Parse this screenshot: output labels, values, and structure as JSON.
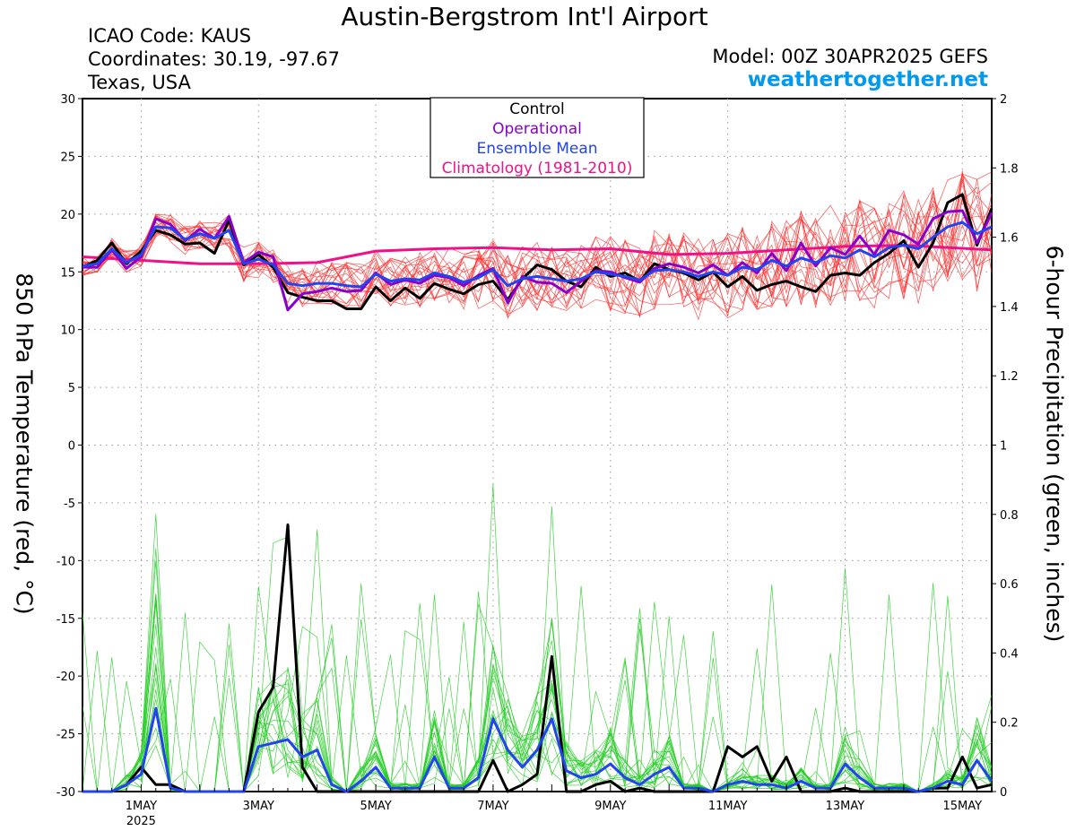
{
  "header": {
    "title": "Austin-Bergstrom Int'l Airport",
    "icao": "ICAO Code: KAUS",
    "coords": "Coordinates: 30.19, -97.67",
    "region": "Texas, USA",
    "model": "Model: 00Z 30APR2025 GEFS",
    "site": "weathertogether.net"
  },
  "chart_data": {
    "type": "line",
    "title": "Austin-Bergstrom Int'l Airport",
    "ylabel": "850 hPa Temperature (red, °C)",
    "y2label": "6-hour Precipitation (green, inches)",
    "xlabel": "",
    "ylim": [
      -30,
      30
    ],
    "y2lim": [
      0,
      2
    ],
    "xlim": [
      0,
      62
    ],
    "x_unit": "6-hour steps from 00Z 30APR2025",
    "yticks": [
      "30",
      "25",
      "20",
      "15",
      "10",
      "5",
      "0",
      "-5",
      "-10",
      "-15",
      "-20",
      "-25",
      "-30"
    ],
    "y2ticks": [
      "2",
      "1.8",
      "1.6",
      "1.4",
      "1.2",
      "1",
      "0.8",
      "0.6",
      "0.4",
      "0.2",
      "0"
    ],
    "xticks": [
      {
        "x": 4,
        "label": "1MAY",
        "sub": "2025"
      },
      {
        "x": 12,
        "label": "3MAY",
        "sub": ""
      },
      {
        "x": 20,
        "label": "5MAY",
        "sub": ""
      },
      {
        "x": 28,
        "label": "7MAY",
        "sub": ""
      },
      {
        "x": 36,
        "label": "9MAY",
        "sub": ""
      },
      {
        "x": 44,
        "label": "11MAY",
        "sub": ""
      },
      {
        "x": 52,
        "label": "13MAY",
        "sub": ""
      },
      {
        "x": 60,
        "label": "15MAY",
        "sub": ""
      }
    ],
    "grid": true,
    "legend": {
      "position": "top-center",
      "entries": [
        {
          "label": "Control",
          "color": "#000000"
        },
        {
          "label": "Operational",
          "color": "#8800cc"
        },
        {
          "label": "Ensemble Mean",
          "color": "#2244ee"
        },
        {
          "label": "Climatology (1981-2010)",
          "color": "#ee1188"
        }
      ]
    },
    "colors": {
      "member_temp": "#ff3333",
      "member_precip": "#22cc22",
      "control": "#000000",
      "operational": "#8800cc",
      "mean": "#2244ee",
      "climatology": "#ee1188"
    },
    "series": [
      {
        "name": "Climatology (1981-2010)",
        "axis": "temp",
        "x": [
          0,
          4,
          8,
          12,
          16,
          20,
          24,
          28,
          32,
          36,
          40,
          44,
          48,
          52,
          56,
          62
        ],
        "values": [
          16.3,
          16.0,
          15.7,
          15.7,
          15.8,
          16.8,
          17.0,
          17.1,
          16.9,
          17.0,
          16.5,
          16.6,
          16.9,
          17.2,
          17.3,
          16.9
        ]
      },
      {
        "name": "Control",
        "axis": "temp",
        "x": [
          0,
          1,
          2,
          3,
          4,
          5,
          6,
          7,
          8,
          9,
          10,
          11,
          12,
          13,
          14,
          15,
          16,
          17,
          18,
          19,
          20,
          21,
          22,
          23,
          24,
          25,
          26,
          27,
          28,
          29,
          30,
          31,
          32,
          33,
          34,
          35,
          36,
          37,
          38,
          39,
          40,
          41,
          42,
          43,
          44,
          45,
          46,
          47,
          48,
          49,
          50,
          51,
          52,
          53,
          54,
          55,
          56,
          57,
          58,
          59,
          60,
          61,
          62
        ],
        "values": [
          15.4,
          16.0,
          17.5,
          15.7,
          16.8,
          18.6,
          18.2,
          17.4,
          17.5,
          16.6,
          19.5,
          15.6,
          16.5,
          15.4,
          13.2,
          12.8,
          12.5,
          12.5,
          11.8,
          11.8,
          13.7,
          12.5,
          13.6,
          12.7,
          14.0,
          13.5,
          13.1,
          13.9,
          14.2,
          12.6,
          14.4,
          15.6,
          15.2,
          14.2,
          13.7,
          15.4,
          14.6,
          14.9,
          14.2,
          15.7,
          15.2,
          14.9,
          14.3,
          15.0,
          13.7,
          14.6,
          13.4,
          13.9,
          14.2,
          13.7,
          13.3,
          14.7,
          14.9,
          14.7,
          15.8,
          16.6,
          17.7,
          15.4,
          17.5,
          21.0,
          21.7,
          17.3,
          20.5
        ]
      },
      {
        "name": "Operational",
        "axis": "temp",
        "x": [
          0,
          1,
          2,
          3,
          4,
          5,
          6,
          7,
          8,
          9,
          10,
          11,
          12,
          13,
          14,
          15,
          16,
          17,
          18,
          19,
          20,
          21,
          22,
          23,
          24,
          25,
          26,
          27,
          28,
          29,
          30,
          31,
          32,
          33,
          34,
          35,
          36,
          37,
          38,
          39,
          40,
          41,
          42,
          43,
          44,
          45,
          46,
          47,
          48,
          49,
          50,
          51,
          52,
          53,
          54,
          55,
          56,
          57,
          58,
          59,
          60,
          61,
          62
        ],
        "values": [
          15.4,
          15.4,
          16.9,
          15.3,
          16.3,
          19.6,
          19.1,
          17.7,
          18.7,
          17.9,
          19.8,
          15.8,
          16.7,
          16.3,
          11.7,
          13.1,
          13.3,
          13.6,
          13.3,
          13.4,
          14.9,
          13.9,
          14.3,
          14.0,
          14.7,
          14.5,
          13.8,
          14.7,
          15.3,
          12.3,
          14.6,
          14.1,
          14.0,
          13.2,
          14.2,
          15.1,
          15.0,
          14.5,
          14.1,
          15.3,
          15.7,
          15.4,
          14.9,
          15.6,
          14.7,
          15.8,
          14.9,
          16.6,
          15.1,
          17.5,
          15.5,
          17.1,
          16.5,
          18.1,
          16.5,
          18.6,
          18.2,
          17.4,
          19.6,
          20.2,
          20.3,
          17.5,
          20.1
        ]
      },
      {
        "name": "Ensemble Mean",
        "axis": "temp",
        "x": [
          0,
          1,
          2,
          3,
          4,
          5,
          6,
          7,
          8,
          9,
          10,
          11,
          12,
          13,
          14,
          15,
          16,
          17,
          18,
          19,
          20,
          21,
          22,
          23,
          24,
          25,
          26,
          27,
          28,
          29,
          30,
          31,
          32,
          33,
          34,
          35,
          36,
          37,
          38,
          39,
          40,
          41,
          42,
          43,
          44,
          45,
          46,
          47,
          48,
          49,
          50,
          51,
          52,
          53,
          54,
          55,
          56,
          57,
          58,
          59,
          60,
          61,
          62
        ],
        "values": [
          15.5,
          15.7,
          17.0,
          15.8,
          16.5,
          18.9,
          18.8,
          17.8,
          18.3,
          17.9,
          18.6,
          15.7,
          16.1,
          15.6,
          14.0,
          13.8,
          14.0,
          14.0,
          13.8,
          13.7,
          14.8,
          14.2,
          14.4,
          14.3,
          14.9,
          14.6,
          14.1,
          14.5,
          15.2,
          13.8,
          14.4,
          14.6,
          14.4,
          14.2,
          14.4,
          15.0,
          14.8,
          14.6,
          14.3,
          15.1,
          15.2,
          15.0,
          14.6,
          15.0,
          14.7,
          15.4,
          15.2,
          16.0,
          15.5,
          16.2,
          15.8,
          16.4,
          16.2,
          16.9,
          16.3,
          17.1,
          17.3,
          17.0,
          18.0,
          18.9,
          19.3,
          18.3,
          18.9
        ]
      },
      {
        "name": "Control",
        "axis": "precip",
        "x": [
          0,
          1,
          2,
          3,
          4,
          5,
          6,
          7,
          8,
          9,
          10,
          11,
          12,
          13,
          14,
          15,
          16,
          17,
          18,
          19,
          20,
          21,
          22,
          23,
          24,
          25,
          26,
          27,
          28,
          29,
          30,
          31,
          32,
          33,
          34,
          35,
          36,
          37,
          38,
          39,
          40,
          41,
          42,
          43,
          44,
          45,
          46,
          47,
          48,
          49,
          50,
          51,
          52,
          53,
          54,
          55,
          56,
          57,
          58,
          59,
          60,
          61,
          62
        ],
        "values": [
          0,
          0,
          0,
          0.02,
          0.07,
          0.02,
          0.02,
          0,
          0,
          0,
          0,
          0,
          0.23,
          0.3,
          0.77,
          0.07,
          0,
          0,
          0,
          0,
          0,
          0,
          0,
          0,
          0,
          0,
          0,
          0,
          0.09,
          0,
          0.02,
          0.05,
          0.39,
          0,
          0,
          0.02,
          0.03,
          0,
          0.01,
          0,
          0,
          0,
          0,
          0,
          0.13,
          0.1,
          0.13,
          0.03,
          0.1,
          0,
          0,
          0,
          0.01,
          0,
          0,
          0,
          0,
          0,
          0.01,
          0.01,
          0.1,
          0.01,
          0.02
        ]
      },
      {
        "name": "Ensemble Mean",
        "axis": "precip",
        "x": [
          0,
          1,
          2,
          3,
          4,
          5,
          6,
          7,
          8,
          9,
          10,
          11,
          12,
          13,
          14,
          15,
          16,
          17,
          18,
          19,
          20,
          21,
          22,
          23,
          24,
          25,
          26,
          27,
          28,
          29,
          30,
          31,
          32,
          33,
          34,
          35,
          36,
          37,
          38,
          39,
          40,
          41,
          42,
          43,
          44,
          45,
          46,
          47,
          48,
          49,
          50,
          51,
          52,
          53,
          54,
          55,
          56,
          57,
          58,
          59,
          60,
          61,
          62
        ],
        "values": [
          0,
          0,
          0,
          0.02,
          0.05,
          0.24,
          0.01,
          0,
          0,
          0,
          0,
          0,
          0.13,
          0.14,
          0.15,
          0.1,
          0.12,
          0.02,
          0,
          0.03,
          0.07,
          0.01,
          0.01,
          0.01,
          0.1,
          0.01,
          0.01,
          0.04,
          0.21,
          0.12,
          0.07,
          0.12,
          0.21,
          0.06,
          0.04,
          0.05,
          0.08,
          0.04,
          0.02,
          0.05,
          0.07,
          0.01,
          0.01,
          0,
          0.02,
          0.03,
          0.02,
          0.02,
          0.01,
          0.03,
          0.01,
          0.01,
          0.08,
          0.04,
          0.01,
          0.01,
          0.01,
          0,
          0.01,
          0.03,
          0.02,
          0.09,
          0.03
        ]
      }
    ]
  }
}
